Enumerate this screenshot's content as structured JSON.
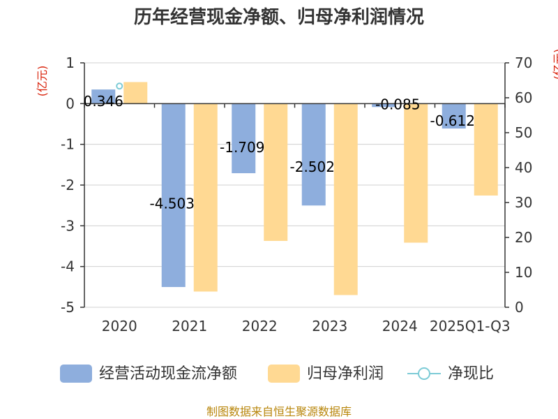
{
  "title": "历年经营现金净额、归母净利润情况",
  "y_left_unit": "(亿元)",
  "y_right_unit": "(亿元)",
  "source": "制图数据来自恒生聚源数据库",
  "chart_data": {
    "type": "bar",
    "categories": [
      "2020",
      "2021",
      "2022",
      "2023",
      "2024",
      "2025Q1-Q3"
    ],
    "series": [
      {
        "name": "经营活动现金流净额",
        "axis": "left",
        "color": "#8eaedd",
        "values": [
          0.346,
          -4.503,
          -1.709,
          -2.502,
          -0.085,
          -0.612
        ],
        "labels": [
          "0.346",
          "-4.503",
          "-1.709",
          "-2.502",
          "-0.085",
          "-0.612"
        ]
      },
      {
        "name": "归母净利润",
        "axis": "right",
        "color": "#ffd993",
        "values": [
          64.5,
          4.5,
          19.0,
          3.5,
          18.5,
          32.0
        ]
      },
      {
        "name": "净现比",
        "axis": "left",
        "type": "line",
        "color": "#7ccbd6",
        "values": [
          0.43,
          null,
          null,
          null,
          null,
          null
        ]
      }
    ],
    "y_left": {
      "range": [
        -5,
        1
      ],
      "ticks": [
        "1",
        "0",
        "-1",
        "-2",
        "-3",
        "-4",
        "-5"
      ]
    },
    "y_right": {
      "range": [
        0,
        70
      ],
      "ticks": [
        "70",
        "60",
        "50",
        "40",
        "30",
        "20",
        "10",
        "0"
      ]
    },
    "grid": true,
    "legend_position": "bottom"
  }
}
